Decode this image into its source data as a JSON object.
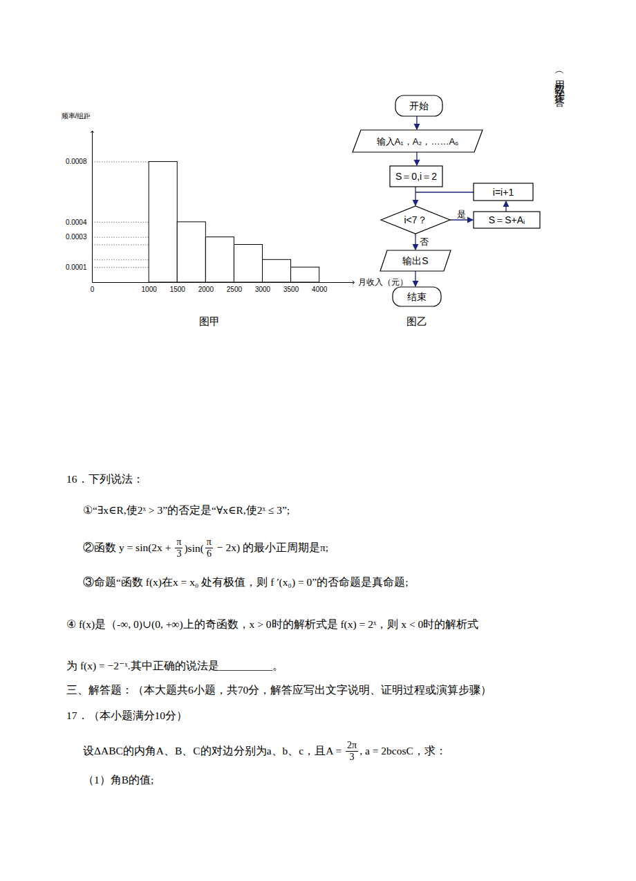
{
  "chart_data": {
    "type": "histogram",
    "ylabel": "频率/组距",
    "xlabel": "月收入（元）",
    "caption": "图甲",
    "bins": [
      1000,
      1500,
      2000,
      2500,
      3000,
      3500,
      4000
    ],
    "values": [
      0.0008,
      0.0004,
      0.0003,
      0.00025,
      0.00015,
      0.0001
    ],
    "xlim": [
      0,
      4600
    ],
    "ylim": [
      0,
      0.001
    ],
    "xticks": [
      0,
      1000,
      1500,
      2000,
      2500,
      3000,
      3500,
      4000
    ],
    "yticks": [
      0.0001,
      0.0003,
      0.0004,
      0.0008
    ],
    "color": "#ffffff"
  },
  "flowchart": {
    "caption": "图乙",
    "nodes": {
      "start": "开始",
      "input": "输入A₁，A₂，……A₆",
      "init": "S＝0,i＝2",
      "cond": "i<7？",
      "body": "S＝S+Aᵢ",
      "incr": "i=i+1",
      "output": "输出S",
      "end": "结束"
    },
    "edges": {
      "yes": "是",
      "no": "否"
    }
  },
  "answer_note": "（用数字作答）",
  "document": {
    "lines": [
      [
        "16．下列说法："
      ],
      [
        "①“∃x∈R,使2ˣ > 3”的否定是“∀x∈R,使2ˣ ≤ 3”;"
      ],
      [
        "②函数 y = sin(2x + ",
        {
          "num": "π",
          "den": "3"
        },
        ")sin(",
        {
          "num": "π",
          "den": "6"
        },
        " − 2x) 的最小正周期是π;"
      ],
      [
        "③命题“函数 f(x)在x = x₀ 处有极值，则 f ′(x₀) = 0”的否命题是真命题;"
      ],
      [
        "④ f(x)是（-∞, 0)∪(0, +∞)上的奇函数，x > 0时的解析式是 f(x) = 2ˣ，则 x < 0时的解析式"
      ],
      [
        "为 f(x) = −2⁻ˣ.其中正确的说法是__________。"
      ],
      [
        "三、解答题：（本大题共6小题，共70分，解答应写出文字说明、证明过程或演算步骤）"
      ],
      [
        "17．（本小题满分10分）"
      ],
      [
        "设ΔABC的内角A、B、C的对边分别为a、b、c，且A = ",
        {
          "num": "2π",
          "den": "3"
        },
        ", a = 2bcosC，求："
      ],
      [
        "（1）角B的值;"
      ]
    ]
  }
}
